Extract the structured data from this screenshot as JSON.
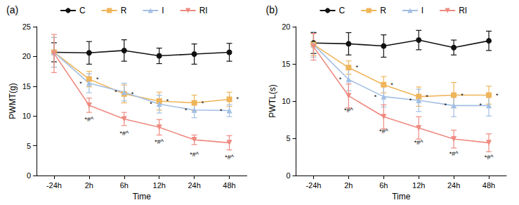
{
  "chart_data": [
    {
      "type": "line",
      "title": "(a)",
      "x_label": "Time",
      "y_label": "PWMT(g)",
      "categories": [
        "-24h",
        "2h",
        "6h",
        "12h",
        "24h",
        "48h"
      ],
      "ylim": [
        0,
        25
      ],
      "yticks": [
        0,
        5,
        10,
        15,
        20,
        25
      ],
      "grid": false,
      "legend": "top",
      "series": [
        {
          "name": "C",
          "color": "#111111",
          "marker": "circle",
          "values": [
            20.7,
            20.6,
            21.0,
            20.1,
            20.4,
            20.7
          ],
          "errors": [
            1.6,
            1.9,
            1.8,
            1.3,
            1.7,
            1.5
          ]
        },
        {
          "name": "R",
          "color": "#efb55a",
          "marker": "square",
          "values": [
            20.7,
            16.2,
            13.7,
            12.5,
            12.2,
            12.8
          ],
          "errors": [
            2.5,
            1.3,
            1.5,
            1.5,
            1.3,
            1.2
          ],
          "annotations": [
            null,
            "*",
            "*",
            "*",
            "*",
            "*"
          ]
        },
        {
          "name": "I",
          "color": "#a3bfe3",
          "marker": "triangle-up",
          "values": [
            20.7,
            15.5,
            14.0,
            12.0,
            11.0,
            10.9
          ],
          "errors": [
            2.5,
            1.6,
            1.5,
            1.5,
            1.3,
            1.0
          ],
          "annotations": [
            null,
            "*",
            "*",
            "*",
            "*",
            "*"
          ]
        },
        {
          "name": "RI",
          "color": "#ee8a80",
          "marker": "triangle-down",
          "values": [
            20.5,
            11.8,
            9.5,
            8.1,
            6.0,
            5.5
          ],
          "errors": [
            3.2,
            1.2,
            1.1,
            1.3,
            0.8,
            1.2
          ],
          "annotations": [
            null,
            "*#^",
            "*#^",
            "*#^",
            "*#^",
            "*#^"
          ]
        }
      ]
    },
    {
      "type": "line",
      "title": "(b)",
      "x_label": "Time",
      "y_label": "PWTL(s)",
      "categories": [
        "-24h",
        "2h",
        "6h",
        "12h",
        "24h",
        "48h"
      ],
      "ylim": [
        0,
        20
      ],
      "yticks": [
        0,
        5,
        10,
        15,
        20
      ],
      "grid": false,
      "legend": "top",
      "series": [
        {
          "name": "C",
          "color": "#111111",
          "marker": "circle",
          "values": [
            17.8,
            17.7,
            17.4,
            18.2,
            17.2,
            18.1
          ],
          "errors": [
            1.4,
            1.5,
            1.5,
            1.3,
            1.0,
            1.3
          ]
        },
        {
          "name": "R",
          "color": "#efb55a",
          "marker": "square",
          "values": [
            17.6,
            14.5,
            12.2,
            10.6,
            10.8,
            10.8
          ],
          "errors": [
            1.5,
            0.9,
            1.1,
            1.3,
            1.7,
            1.2
          ],
          "annotations": [
            null,
            "*",
            "*",
            "*",
            "*",
            "*"
          ]
        },
        {
          "name": "I",
          "color": "#a3bfe3",
          "marker": "triangle-up",
          "values": [
            17.6,
            12.9,
            10.6,
            10.1,
            9.4,
            9.4
          ],
          "errors": [
            1.7,
            1.5,
            1.4,
            1.5,
            1.5,
            1.4
          ],
          "annotations": [
            null,
            "*",
            "*",
            "*",
            "*",
            "*"
          ]
        },
        {
          "name": "RI",
          "color": "#ee8a80",
          "marker": "triangle-down",
          "values": [
            17.3,
            10.7,
            7.9,
            6.4,
            4.9,
            4.4
          ],
          "errors": [
            1.8,
            1.6,
            1.6,
            1.5,
            1.2,
            1.2
          ],
          "annotations": [
            null,
            "*#^",
            "*#^",
            "*#^",
            "*#^",
            "*#^"
          ]
        }
      ]
    }
  ]
}
